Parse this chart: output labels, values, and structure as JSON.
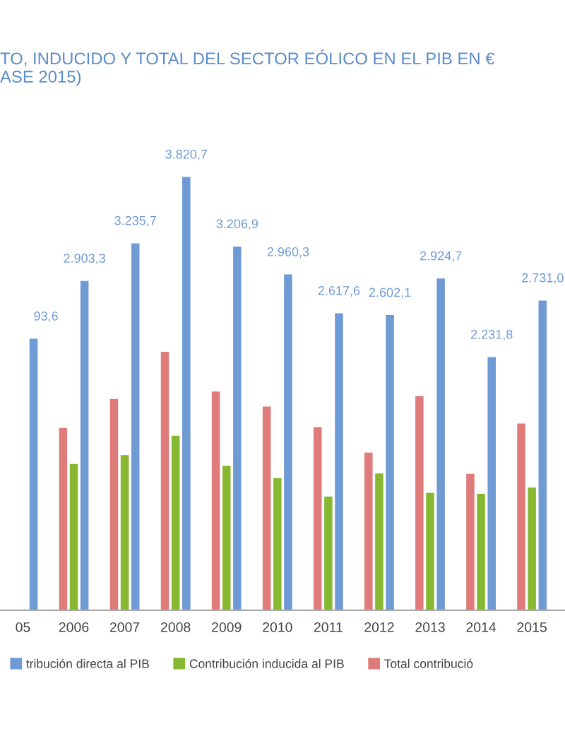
{
  "chart_data": {
    "type": "bar",
    "title": "TO, INDUCIDO Y TOTAL DEL SECTOR EÓLICO EN EL PIB EN €\nASE 2015)",
    "categories": [
      "05",
      "2006",
      "2007",
      "2008",
      "2009",
      "2010",
      "2011",
      "2012",
      "2013",
      "2014",
      "2015"
    ],
    "series": [
      {
        "name": "Total contribució",
        "color": "#e07b7b",
        "values": [
          null,
          1608,
          1863,
          2278,
          1929,
          1796,
          1613,
          1389,
          1888,
          1202,
          1646
        ]
      },
      {
        "name": "Contribución inducida al PIB",
        "color": "#86b832",
        "values": [
          null,
          1289,
          1368,
          1539,
          1272,
          1165,
          1002,
          1206,
          1035,
          1027,
          1081
        ]
      },
      {
        "name": "tribución directa al PIB",
        "color": "#6f9bd4",
        "values": [
          2393.6,
          2903.3,
          3235.7,
          3820.7,
          3206.9,
          2960.3,
          2617.6,
          2602.1,
          2924.7,
          2231.8,
          2731.0
        ],
        "value_labels": [
          null,
          "2.903,3",
          "3.235,7",
          "3.820,7",
          "3.206,9",
          "2.960,3",
          "2.617,6",
          "2.602,1",
          "2.924,7",
          "2.231,8",
          "2.731,0"
        ]
      }
    ],
    "annotations": [
      "93,6"
    ],
    "tick_labels": "x",
    "grid": false,
    "legend": "bottom"
  }
}
